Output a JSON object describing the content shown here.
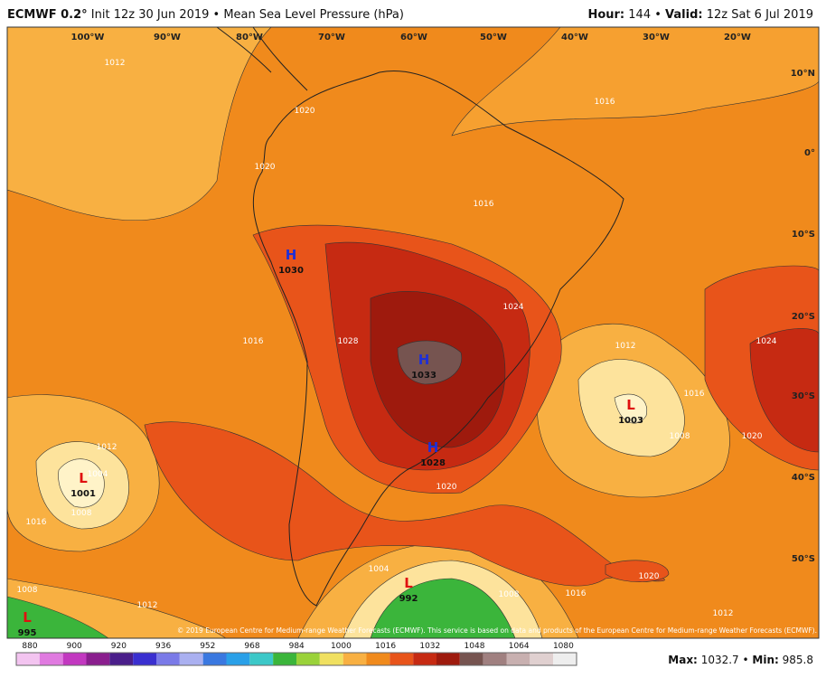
{
  "header": {
    "model": "ECMWF 0.2°",
    "title": "Init 12z 30 Jun 2019 • Mean Sea Level Pressure (hPa)",
    "hour_label": "Hour:",
    "hour": "144 •",
    "valid_label": "Valid:",
    "valid": "12z Sat 6 Jul 2019"
  },
  "map": {
    "longitude_labels": [
      "100°W",
      "90°W",
      "80°W",
      "70°W",
      "60°W",
      "50°W",
      "40°W",
      "30°W",
      "20°W"
    ],
    "latitude_labels": [
      "10°N",
      "0°",
      "10°S",
      "20°S",
      "30°S",
      "40°S",
      "50°S"
    ],
    "centers": [
      {
        "symbol": "H",
        "value": "1030"
      },
      {
        "symbol": "H",
        "value": "1033"
      },
      {
        "symbol": "H",
        "value": "1028"
      },
      {
        "symbol": "L",
        "value": "1003"
      },
      {
        "symbol": "L",
        "value": "1001"
      },
      {
        "symbol": "L",
        "value": "992"
      },
      {
        "symbol": "L",
        "value": "995"
      }
    ],
    "isobar_labels": [
      "1012",
      "1020",
      "1020",
      "1016",
      "1024",
      "1012",
      "1016",
      "1020",
      "1008",
      "1024",
      "1016",
      "1012",
      "1004",
      "1008",
      "1016",
      "1020",
      "1020",
      "1016",
      "1012",
      "1008",
      "1004",
      "1008",
      "1012",
      "1016",
      "1028"
    ],
    "copyright": "© 2019 European Centre for Medium-range Weather Forecasts (ECMWF). This service is based on data and products of the European Centre for Medium-range Weather Forecasts (ECMWF)."
  },
  "colorbar": {
    "ticks": [
      "880",
      "900",
      "920",
      "936",
      "952",
      "968",
      "984",
      "1000",
      "1016",
      "1032",
      "1048",
      "1064",
      "1080"
    ]
  },
  "footer": {
    "max_label": "Max:",
    "max": "1032.7 •",
    "min_label": "Min:",
    "min": "985.8"
  }
}
